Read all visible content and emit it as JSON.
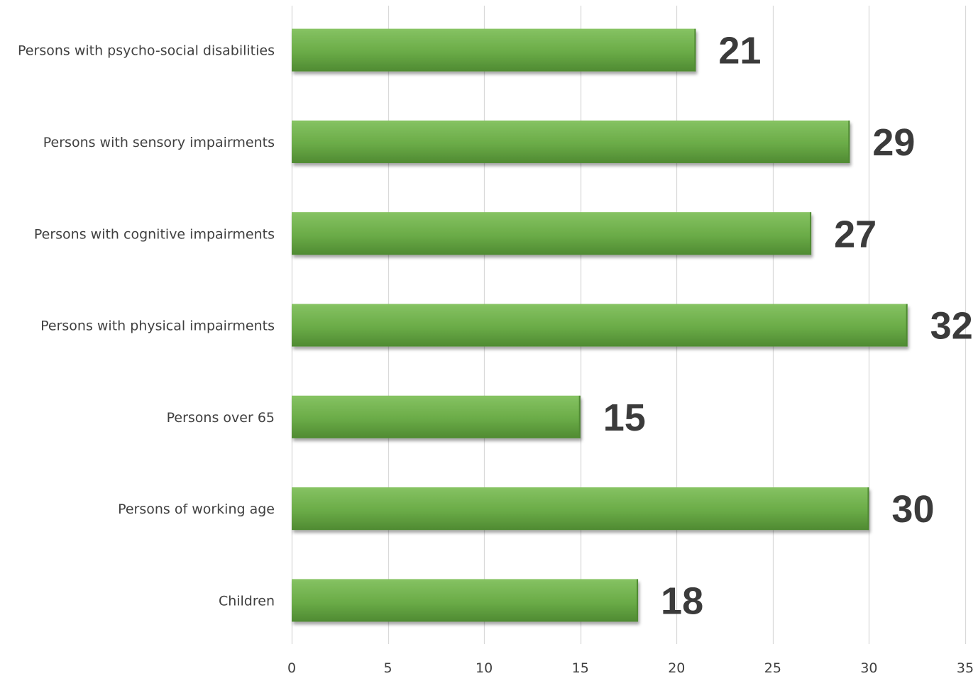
{
  "chart_data": {
    "type": "bar",
    "orientation": "horizontal",
    "categories": [
      "Persons with psycho-social disabilities",
      "Persons with sensory impairments",
      "Persons with cognitive impairments",
      "Persons with physical impairments",
      "Persons over 65",
      "Persons of working age",
      "Children"
    ],
    "values": [
      21,
      29,
      27,
      32,
      15,
      30,
      18
    ],
    "data_labels": [
      "21",
      "29",
      "27",
      "32",
      "15",
      "30",
      "18"
    ],
    "xlim": [
      0,
      35
    ],
    "x_ticks": [
      0,
      5,
      10,
      15,
      20,
      25,
      30,
      35
    ],
    "x_tick_labels": [
      "0",
      "5",
      "10",
      "15",
      "20",
      "25",
      "30",
      "35"
    ],
    "title": "",
    "xlabel": "",
    "ylabel": "",
    "grid": "vertical",
    "legend": "none",
    "bar_color": "#6aab47",
    "bar_highlight_color": "#85c262",
    "bar_shade_color": "#4f8a32",
    "label_color": "#3b3b3b",
    "gridline_color": "#d9d9d9"
  }
}
